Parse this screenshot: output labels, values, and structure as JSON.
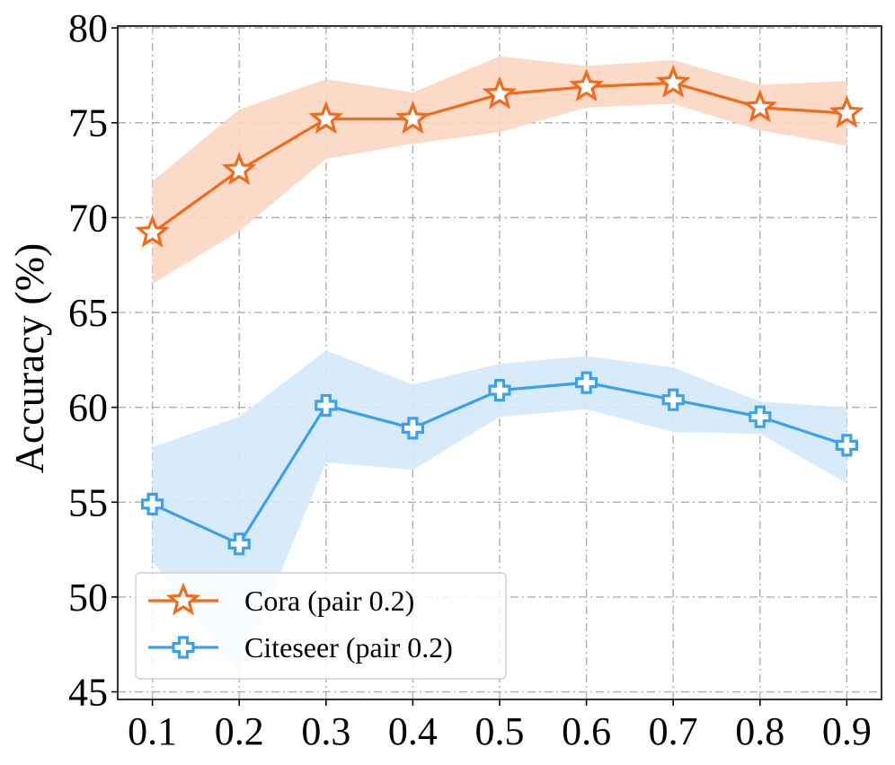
{
  "chart_data": {
    "type": "line",
    "title": "",
    "xlabel": "",
    "ylabel": "Accuracy (%)",
    "x": [
      0.1,
      0.2,
      0.3,
      0.4,
      0.5,
      0.6,
      0.7,
      0.8,
      0.9
    ],
    "x_tick_labels": [
      "0.1",
      "0.2",
      "0.3",
      "0.4",
      "0.5",
      "0.6",
      "0.7",
      "0.8",
      "0.9"
    ],
    "y_ticks": [
      45,
      50,
      55,
      60,
      65,
      70,
      75,
      80
    ],
    "y_tick_labels": [
      "45",
      "50",
      "55",
      "60",
      "65",
      "70",
      "75",
      "80"
    ],
    "xlim": [
      0.06,
      0.94
    ],
    "ylim": [
      44.6,
      80.1
    ],
    "grid": true,
    "legend_position": "lower-left",
    "series": [
      {
        "name": "Cora (pair 0.2)",
        "color": "#f26b1d",
        "band_color": "#fcd6c2",
        "marker": "star",
        "values": [
          69.2,
          72.5,
          75.2,
          75.2,
          76.5,
          76.9,
          77.1,
          75.8,
          75.5
        ],
        "upper": [
          71.9,
          75.7,
          77.3,
          76.6,
          78.5,
          78.0,
          78.3,
          77.0,
          77.2
        ],
        "lower": [
          66.5,
          69.3,
          73.1,
          73.9,
          74.5,
          75.8,
          76.0,
          74.6,
          73.8
        ]
      },
      {
        "name": "Citeseer (pair 0.2)",
        "color": "#3aa0f0",
        "band_color": "#d4e9fb",
        "marker": "plus",
        "values": [
          54.9,
          52.8,
          60.1,
          58.9,
          60.9,
          61.3,
          60.4,
          59.5,
          58.0
        ],
        "upper": [
          57.9,
          59.5,
          63.0,
          61.2,
          62.3,
          62.7,
          62.1,
          60.3,
          60.0
        ],
        "lower": [
          51.9,
          46.0,
          57.1,
          56.7,
          59.5,
          59.9,
          58.7,
          58.6,
          56.0
        ]
      }
    ]
  }
}
